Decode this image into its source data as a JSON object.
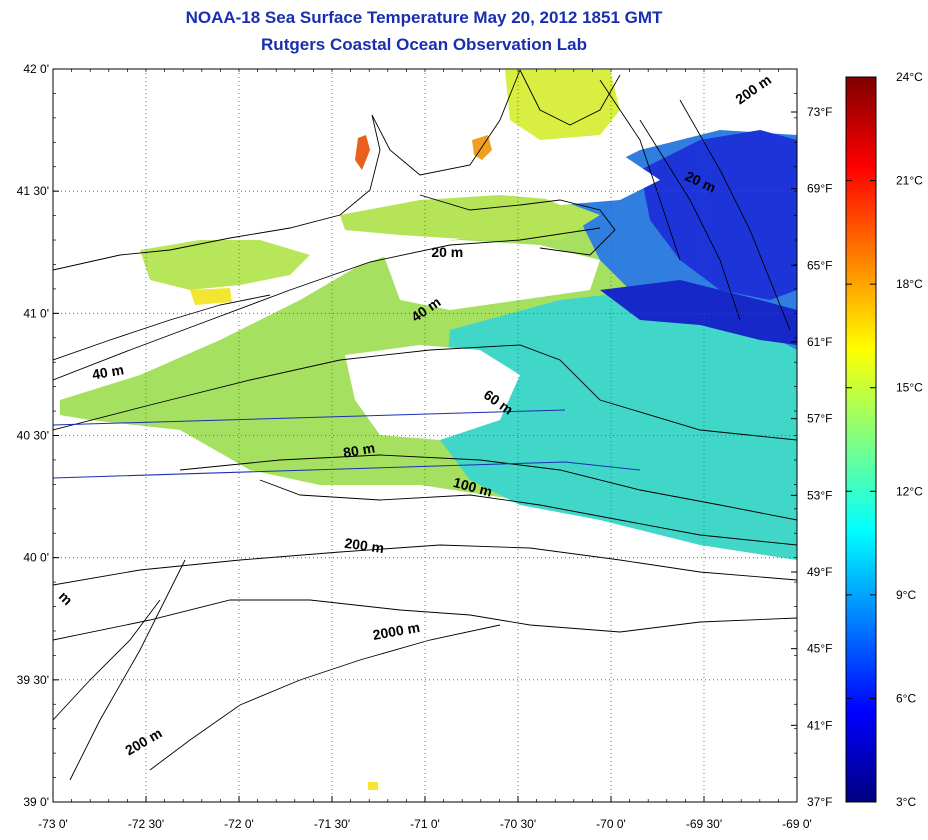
{
  "title": "NOAA-18 Sea Surface Temperature May 20, 2012 1851 GMT",
  "subtitle": "Rutgers Coastal Ocean Observation Lab",
  "map": {
    "lon_range": [
      -73,
      -69
    ],
    "lat_range": [
      39,
      42
    ],
    "lon_ticks": [
      "-73 0'",
      "-72 30'",
      "-72 0'",
      "-71 30'",
      "-71 0'",
      "-70 30'",
      "-70 0'",
      "-69 30'",
      "-69 0'"
    ],
    "lat_ticks": [
      "39 0'",
      "39 30'",
      "40 0'",
      "40 30'",
      "41 0'",
      "41 30'",
      "42 0'"
    ],
    "fahrenheit_ticks": [
      "37°F",
      "41°F",
      "45°F",
      "49°F",
      "53°F",
      "57°F",
      "61°F",
      "65°F",
      "69°F",
      "73°F"
    ],
    "grid": "dotted",
    "contour_labels": [
      {
        "text": "200 m",
        "lon": -69.22,
        "lat": 41.9,
        "angle": -35
      },
      {
        "text": "20 m",
        "lon": -69.53,
        "lat": 41.52,
        "angle": 25
      },
      {
        "text": "20 m",
        "lon": -70.88,
        "lat": 41.23,
        "angle": 0
      },
      {
        "text": "40 m",
        "lon": -70.98,
        "lat": 41.0,
        "angle": -35
      },
      {
        "text": "40 m",
        "lon": -72.7,
        "lat": 40.74,
        "angle": -10
      },
      {
        "text": "60 m",
        "lon": -70.62,
        "lat": 40.62,
        "angle": 35
      },
      {
        "text": "80 m",
        "lon": -71.35,
        "lat": 40.42,
        "angle": -10
      },
      {
        "text": "100 m",
        "lon": -70.75,
        "lat": 40.27,
        "angle": 15
      },
      {
        "text": "200 m",
        "lon": -71.33,
        "lat": 40.03,
        "angle": 8
      },
      {
        "text": "m",
        "lon": -72.95,
        "lat": 39.82,
        "angle": 45
      },
      {
        "text": "2000 m",
        "lon": -71.15,
        "lat": 39.68,
        "angle": -10
      },
      {
        "text": "200 m",
        "lon": -72.5,
        "lat": 39.23,
        "angle": -30
      }
    ]
  },
  "colorbar": {
    "celsius_ticks": [
      "3°C",
      "6°C",
      "9°C",
      "12°C",
      "15°C",
      "18°C",
      "21°C",
      "24°C"
    ],
    "range_c": [
      3,
      24
    ],
    "stops": [
      "#00007f",
      "#0000ff",
      "#0080ff",
      "#00ffff",
      "#80ff80",
      "#ffff00",
      "#ff8000",
      "#ff0000",
      "#7f0000"
    ]
  }
}
